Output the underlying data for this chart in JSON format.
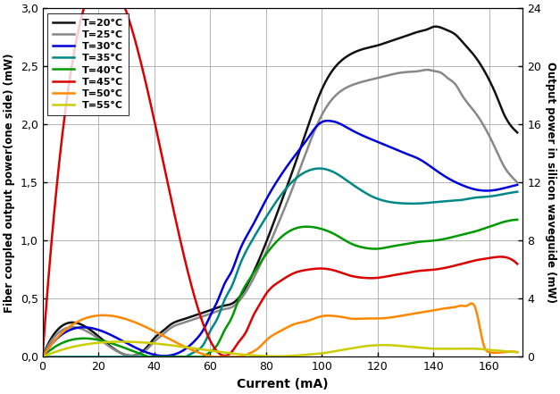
{
  "title": "",
  "xlabel": "Current (mA)",
  "ylabel_left": "Fiber coupled output power(one side) (mW)",
  "ylabel_right": "Output power in silicon waveguide (mW)",
  "xlim": [
    0,
    172
  ],
  "ylim_left": [
    0,
    3.0
  ],
  "ylim_right": [
    0,
    24
  ],
  "xticks": [
    0,
    20,
    40,
    60,
    80,
    100,
    120,
    140,
    160
  ],
  "yticks_left": [
    0.0,
    0.5,
    1.0,
    1.5,
    2.0,
    2.5,
    3.0
  ],
  "yticks_right": [
    0,
    4,
    8,
    12,
    16,
    20,
    24
  ],
  "series": [
    {
      "label": "T=20°C",
      "color": "#111111",
      "lw": 1.8,
      "x": [
        0,
        32,
        36,
        38,
        40,
        43,
        46,
        50,
        55,
        60,
        65,
        68,
        70,
        75,
        80,
        85,
        90,
        95,
        100,
        105,
        110,
        115,
        120,
        125,
        130,
        135,
        138,
        140,
        143,
        145,
        148,
        150,
        155,
        160,
        163,
        165,
        168,
        170
      ],
      "y": [
        0,
        0.01,
        0.05,
        0.1,
        0.16,
        0.22,
        0.28,
        0.32,
        0.36,
        0.4,
        0.44,
        0.46,
        0.5,
        0.7,
        0.98,
        1.3,
        1.63,
        1.98,
        2.3,
        2.5,
        2.6,
        2.65,
        2.68,
        2.72,
        2.76,
        2.8,
        2.82,
        2.84,
        2.83,
        2.81,
        2.77,
        2.72,
        2.58,
        2.38,
        2.22,
        2.1,
        1.98,
        1.93
      ]
    },
    {
      "label": "T=25°C",
      "color": "#888888",
      "lw": 1.8,
      "x": [
        0,
        32,
        36,
        38,
        40,
        43,
        46,
        50,
        55,
        60,
        65,
        68,
        70,
        75,
        80,
        85,
        90,
        95,
        100,
        105,
        110,
        115,
        120,
        125,
        130,
        135,
        138,
        140,
        143,
        145,
        148,
        150,
        155,
        160,
        163,
        165,
        168,
        170
      ],
      "y": [
        0,
        0.01,
        0.04,
        0.08,
        0.13,
        0.19,
        0.25,
        0.29,
        0.33,
        0.37,
        0.41,
        0.43,
        0.47,
        0.65,
        0.9,
        1.18,
        1.48,
        1.8,
        2.08,
        2.25,
        2.33,
        2.37,
        2.4,
        2.43,
        2.45,
        2.46,
        2.47,
        2.46,
        2.44,
        2.4,
        2.34,
        2.26,
        2.1,
        1.9,
        1.75,
        1.65,
        1.55,
        1.5
      ]
    },
    {
      "label": "T=30°C",
      "color": "#0000dd",
      "lw": 1.8,
      "x": [
        0,
        45,
        50,
        55,
        58,
        60,
        63,
        65,
        68,
        70,
        75,
        80,
        85,
        90,
        95,
        98,
        100,
        103,
        105,
        110,
        115,
        120,
        125,
        130,
        135,
        140,
        145,
        150,
        155,
        160,
        165,
        170
      ],
      "y": [
        0,
        0.01,
        0.05,
        0.15,
        0.25,
        0.35,
        0.5,
        0.62,
        0.75,
        0.88,
        1.12,
        1.35,
        1.55,
        1.72,
        1.88,
        1.98,
        2.02,
        2.03,
        2.02,
        1.96,
        1.9,
        1.85,
        1.8,
        1.75,
        1.7,
        1.62,
        1.54,
        1.48,
        1.44,
        1.43,
        1.45,
        1.48
      ]
    },
    {
      "label": "T=35°C",
      "color": "#008888",
      "lw": 1.8,
      "x": [
        0,
        52,
        55,
        58,
        60,
        63,
        65,
        68,
        70,
        75,
        80,
        85,
        90,
        95,
        100,
        105,
        110,
        115,
        118,
        120,
        125,
        130,
        135,
        140,
        145,
        150,
        155,
        160,
        165,
        170
      ],
      "y": [
        0,
        0.01,
        0.05,
        0.12,
        0.22,
        0.35,
        0.48,
        0.62,
        0.75,
        1.0,
        1.2,
        1.38,
        1.52,
        1.6,
        1.62,
        1.58,
        1.5,
        1.42,
        1.38,
        1.36,
        1.33,
        1.32,
        1.32,
        1.33,
        1.34,
        1.35,
        1.37,
        1.38,
        1.4,
        1.42
      ]
    },
    {
      "label": "T=40°C",
      "color": "#009900",
      "lw": 1.8,
      "x": [
        0,
        58,
        60,
        63,
        65,
        68,
        70,
        75,
        80,
        85,
        90,
        95,
        100,
        105,
        110,
        115,
        120,
        125,
        130,
        135,
        140,
        145,
        150,
        155,
        160,
        165,
        170
      ],
      "y": [
        0,
        0.01,
        0.04,
        0.12,
        0.22,
        0.35,
        0.48,
        0.7,
        0.88,
        1.02,
        1.1,
        1.12,
        1.1,
        1.05,
        0.98,
        0.94,
        0.93,
        0.95,
        0.97,
        0.99,
        1.0,
        1.02,
        1.05,
        1.08,
        1.12,
        1.16,
        1.18
      ]
    },
    {
      "label": "T=45°C",
      "color": "#dd0000",
      "lw": 1.8,
      "x": [
        0,
        65,
        68,
        70,
        73,
        75,
        78,
        80,
        85,
        90,
        95,
        100,
        105,
        110,
        115,
        120,
        125,
        130,
        135,
        140,
        145,
        150,
        155,
        160,
        165,
        170
      ],
      "y": [
        0,
        0.01,
        0.05,
        0.12,
        0.22,
        0.33,
        0.46,
        0.54,
        0.65,
        0.72,
        0.75,
        0.76,
        0.74,
        0.7,
        0.68,
        0.68,
        0.7,
        0.72,
        0.74,
        0.75,
        0.77,
        0.8,
        0.83,
        0.85,
        0.86,
        0.8
      ]
    },
    {
      "label": "T=50°C",
      "color": "#ff8800",
      "lw": 1.8,
      "x": [
        0,
        72,
        75,
        78,
        80,
        85,
        90,
        95,
        100,
        105,
        108,
        110,
        115,
        120,
        125,
        130,
        135,
        140,
        145,
        148,
        150,
        152,
        155,
        158,
        160,
        165,
        170
      ],
      "y": [
        0,
        0.01,
        0.04,
        0.09,
        0.14,
        0.22,
        0.28,
        0.31,
        0.35,
        0.35,
        0.34,
        0.33,
        0.33,
        0.33,
        0.34,
        0.36,
        0.38,
        0.4,
        0.42,
        0.43,
        0.44,
        0.44,
        0.42,
        0.1,
        0.04,
        0.04,
        0.04
      ]
    },
    {
      "label": "T=55°C",
      "color": "#cccc00",
      "lw": 1.8,
      "x": [
        0,
        85,
        90,
        95,
        100,
        105,
        110,
        115,
        120,
        125,
        130,
        135,
        140,
        145,
        150,
        155,
        160,
        165,
        170
      ],
      "y": [
        0,
        0.005,
        0.01,
        0.02,
        0.03,
        0.05,
        0.07,
        0.09,
        0.1,
        0.1,
        0.09,
        0.08,
        0.07,
        0.07,
        0.07,
        0.07,
        0.06,
        0.05,
        0.04
      ]
    }
  ],
  "background_color": "#ffffff",
  "grid_color": "#aaaaaa"
}
